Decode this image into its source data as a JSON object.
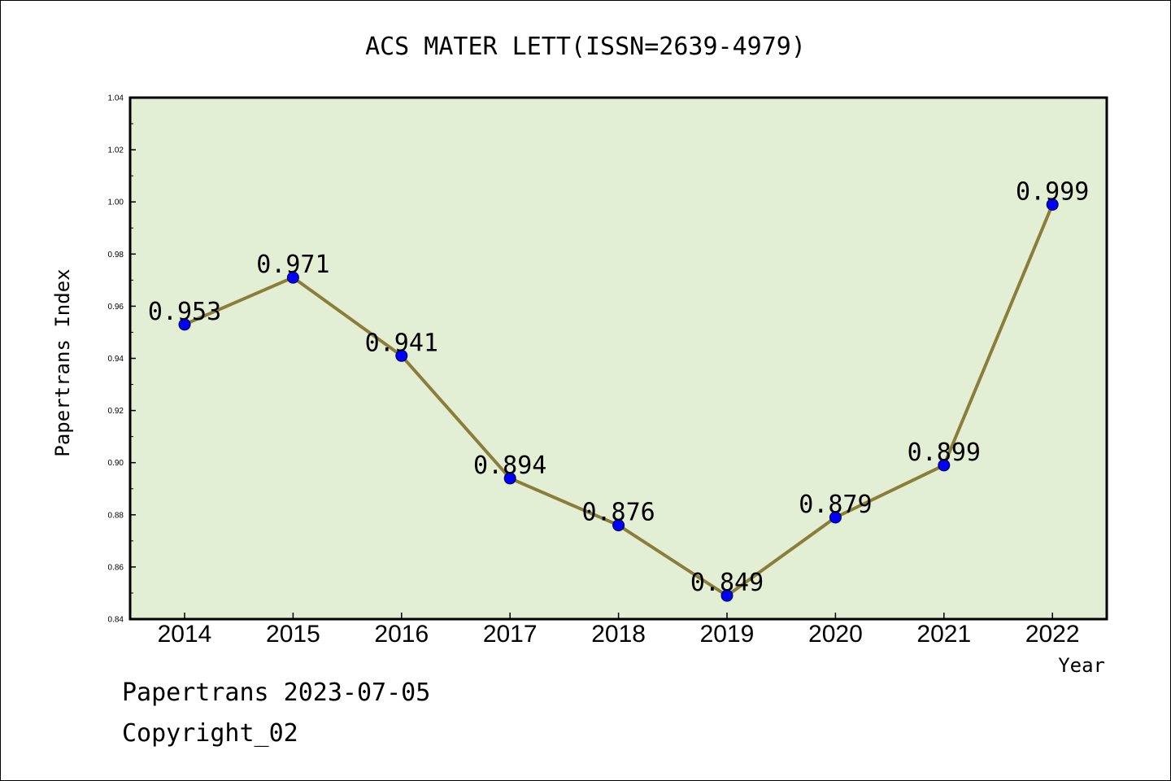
{
  "chart_data": {
    "type": "line",
    "title": "ACS MATER LETT(ISSN=2639-4979)",
    "xlabel": "Year",
    "ylabel": "Papertrans Index",
    "categories": [
      "2014",
      "2015",
      "2016",
      "2017",
      "2018",
      "2019",
      "2020",
      "2021",
      "2022"
    ],
    "values": [
      0.953,
      0.971,
      0.941,
      0.894,
      0.876,
      0.849,
      0.879,
      0.899,
      0.999
    ],
    "data_labels": [
      "0.953",
      "0.971",
      "0.941",
      "0.894",
      "0.876",
      "0.849",
      "0.879",
      "0.899",
      "0.999"
    ],
    "ylim": [
      0.84,
      1.04
    ],
    "yticks": [
      "0.84",
      "0.86",
      "0.88",
      "0.90",
      "0.92",
      "0.94",
      "0.96",
      "0.98",
      "1.00",
      "1.02",
      "1.04"
    ],
    "grid": false,
    "legend": "none",
    "colors": {
      "plot_background": "#e2efd4",
      "line": "#8b7d3a",
      "marker": "#0000ff"
    }
  },
  "footer": {
    "line1": "Papertrans 2023-07-05",
    "line2": "Copyright_02"
  }
}
